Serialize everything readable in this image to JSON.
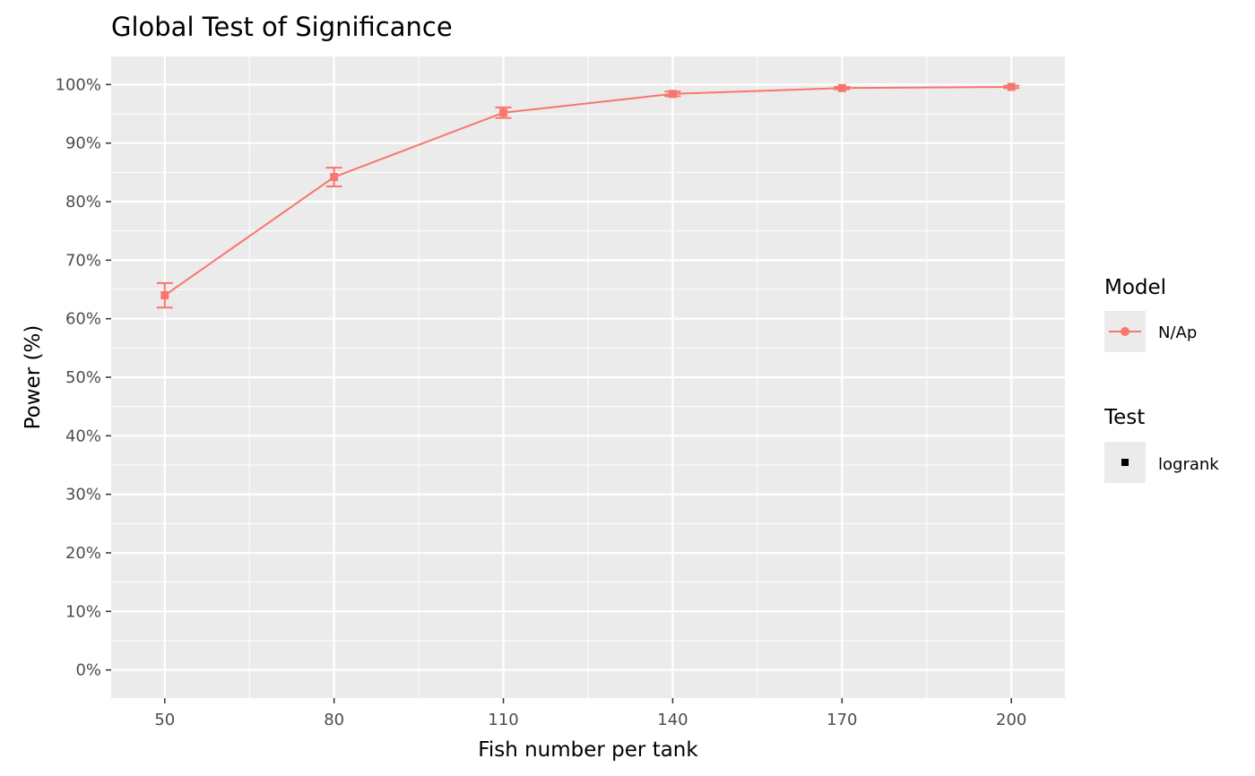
{
  "chart_data": {
    "type": "line",
    "title": "Global Test of Significance",
    "xlabel": "Fish number per tank",
    "ylabel": "Power (%)",
    "x": [
      50,
      80,
      110,
      140,
      170,
      200
    ],
    "x_tick_labels": [
      "50",
      "80",
      "110",
      "140",
      "170",
      "200"
    ],
    "xlim": [
      40.5,
      209.5
    ],
    "ylim": [
      -0.048,
      1.048
    ],
    "y_ticks": [
      0,
      0.1,
      0.2,
      0.3,
      0.4,
      0.5,
      0.6,
      0.7,
      0.8,
      0.9,
      1.0
    ],
    "y_tick_labels": [
      "0%",
      "10%",
      "20%",
      "30%",
      "40%",
      "50%",
      "60%",
      "70%",
      "80%",
      "90%",
      "100%"
    ],
    "grid": true,
    "series": [
      {
        "name": "N/Ap",
        "test": "logrank",
        "color": "#F8766D",
        "values": [
          0.64,
          0.842,
          0.952,
          0.984,
          0.994,
          0.996
        ],
        "error_low": [
          0.619,
          0.826,
          0.943,
          0.98,
          0.992,
          0.994
        ],
        "error_high": [
          0.661,
          0.858,
          0.961,
          0.988,
          0.996,
          0.998
        ]
      }
    ],
    "legend": {
      "position": "right",
      "groups": [
        {
          "title": "Model",
          "entries": [
            {
              "label": "N/Ap",
              "symbol": "line-circle",
              "color": "#F8766D"
            }
          ]
        },
        {
          "title": "Test",
          "entries": [
            {
              "label": "logrank",
              "symbol": "square",
              "color": "#000000"
            }
          ]
        }
      ]
    },
    "colors": {
      "panel_background": "#EBEBEB",
      "grid": "#FFFFFF",
      "tick_text": "#4D4D4D"
    }
  }
}
